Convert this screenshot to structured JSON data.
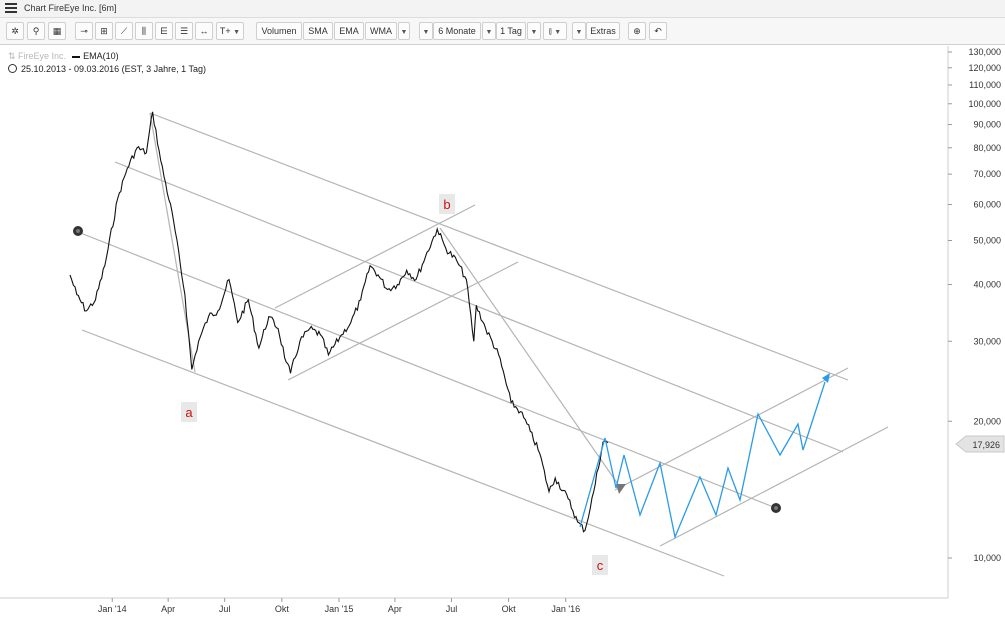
{
  "window": {
    "title": "Chart FireEye Inc. [6m]"
  },
  "toolbar": {
    "volume_label": "Volumen",
    "sma_label": "SMA",
    "ema_label": "EMA",
    "wma_label": "WMA",
    "period_label": "6 Monate",
    "interval_label": "1 Tag",
    "extras_label": "Extras",
    "icons": [
      "gear-icon",
      "search-icon",
      "grid-icon",
      "line-tool-icon",
      "fib-tool-icon",
      "trend-tool-icon",
      "bars-icon",
      "channel-icon",
      "lines-icon",
      "measure-icon",
      "text-tool-icon",
      "candle-type-icon",
      "zoom-icon",
      "undo-icon"
    ]
  },
  "header": {
    "instrument": "FireEye Inc.",
    "indicator": "EMA(10)",
    "range": "25.10.2013 - 09.03.2016 (EST, 3 Jahre, 1 Tag)"
  },
  "chart_data": {
    "type": "line",
    "yscale": "log",
    "ylim": [
      8.7,
      131
    ],
    "y_ticks": [
      {
        "value": 130,
        "label": "130,000"
      },
      {
        "value": 120,
        "label": "120,000"
      },
      {
        "value": 110,
        "label": "110,000"
      },
      {
        "value": 100,
        "label": "100,000"
      },
      {
        "value": 90,
        "label": "90,000"
      },
      {
        "value": 80,
        "label": "80,000"
      },
      {
        "value": 70,
        "label": "70,000"
      },
      {
        "value": 60,
        "label": "60,000"
      },
      {
        "value": 50,
        "label": "50,000"
      },
      {
        "value": 40,
        "label": "40,000"
      },
      {
        "value": 30,
        "label": "30,000"
      },
      {
        "value": 20,
        "label": "20,000"
      },
      {
        "value": 10,
        "label": "10,000"
      }
    ],
    "x_range": [
      "2013-10-25",
      "2016-03-09"
    ],
    "x_ticks": [
      {
        "date": "2014-01-01",
        "label": "Jan '14"
      },
      {
        "date": "2014-04-01",
        "label": "Apr"
      },
      {
        "date": "2014-07-01",
        "label": "Jul"
      },
      {
        "date": "2014-10-01",
        "label": "Okt"
      },
      {
        "date": "2015-01-01",
        "label": "Jan '15"
      },
      {
        "date": "2015-04-01",
        "label": "Apr"
      },
      {
        "date": "2015-07-01",
        "label": "Jul"
      },
      {
        "date": "2015-10-01",
        "label": "Okt"
      },
      {
        "date": "2016-01-01",
        "label": "Jan '16"
      }
    ],
    "last_price": {
      "value": 17.926,
      "label": "17,926"
    },
    "price_series": [
      {
        "x": "2013-10-25",
        "y": 42
      },
      {
        "x": "2013-11-05",
        "y": 38
      },
      {
        "x": "2013-11-20",
        "y": 35
      },
      {
        "x": "2013-12-05",
        "y": 37
      },
      {
        "x": "2013-12-20",
        "y": 44
      },
      {
        "x": "2014-01-10",
        "y": 62
      },
      {
        "x": "2014-01-25",
        "y": 72
      },
      {
        "x": "2014-02-10",
        "y": 80
      },
      {
        "x": "2014-02-25",
        "y": 78
      },
      {
        "x": "2014-03-07",
        "y": 96
      },
      {
        "x": "2014-03-20",
        "y": 75
      },
      {
        "x": "2014-04-10",
        "y": 55
      },
      {
        "x": "2014-04-28",
        "y": 38
      },
      {
        "x": "2014-05-09",
        "y": 26
      },
      {
        "x": "2014-05-20",
        "y": 30
      },
      {
        "x": "2014-06-05",
        "y": 34
      },
      {
        "x": "2014-06-20",
        "y": 35
      },
      {
        "x": "2014-07-08",
        "y": 41
      },
      {
        "x": "2014-07-22",
        "y": 33
      },
      {
        "x": "2014-08-08",
        "y": 37
      },
      {
        "x": "2014-08-25",
        "y": 29
      },
      {
        "x": "2014-09-10",
        "y": 34
      },
      {
        "x": "2014-09-25",
        "y": 32
      },
      {
        "x": "2014-10-08",
        "y": 27
      },
      {
        "x": "2014-10-15",
        "y": 25.5
      },
      {
        "x": "2014-10-30",
        "y": 30
      },
      {
        "x": "2014-11-15",
        "y": 32
      },
      {
        "x": "2014-12-02",
        "y": 31
      },
      {
        "x": "2014-12-15",
        "y": 28
      },
      {
        "x": "2015-01-05",
        "y": 31
      },
      {
        "x": "2015-01-20",
        "y": 33
      },
      {
        "x": "2015-02-05",
        "y": 37
      },
      {
        "x": "2015-02-20",
        "y": 44
      },
      {
        "x": "2015-03-05",
        "y": 42
      },
      {
        "x": "2015-03-20",
        "y": 39
      },
      {
        "x": "2015-04-05",
        "y": 40
      },
      {
        "x": "2015-04-20",
        "y": 43
      },
      {
        "x": "2015-05-05",
        "y": 41
      },
      {
        "x": "2015-05-20",
        "y": 46
      },
      {
        "x": "2015-06-08",
        "y": 53
      },
      {
        "x": "2015-06-22",
        "y": 48
      },
      {
        "x": "2015-07-10",
        "y": 45
      },
      {
        "x": "2015-07-25",
        "y": 41
      },
      {
        "x": "2015-08-06",
        "y": 30
      },
      {
        "x": "2015-08-10",
        "y": 36
      },
      {
        "x": "2015-08-25",
        "y": 32
      },
      {
        "x": "2015-09-15",
        "y": 28
      },
      {
        "x": "2015-10-05",
        "y": 22
      },
      {
        "x": "2015-10-20",
        "y": 21
      },
      {
        "x": "2015-11-05",
        "y": 19
      },
      {
        "x": "2015-11-20",
        "y": 17
      },
      {
        "x": "2015-12-05",
        "y": 14
      },
      {
        "x": "2015-12-15",
        "y": 15
      },
      {
        "x": "2016-01-05",
        "y": 13.5
      },
      {
        "x": "2016-01-20",
        "y": 12
      },
      {
        "x": "2016-02-01",
        "y": 11.5
      },
      {
        "x": "2016-02-15",
        "y": 14
      },
      {
        "x": "2016-03-01",
        "y": 18
      },
      {
        "x": "2016-03-09",
        "y": 17.926
      }
    ],
    "annotations": [
      {
        "label": "a"
      },
      {
        "label": "b"
      },
      {
        "label": "c"
      }
    ]
  }
}
